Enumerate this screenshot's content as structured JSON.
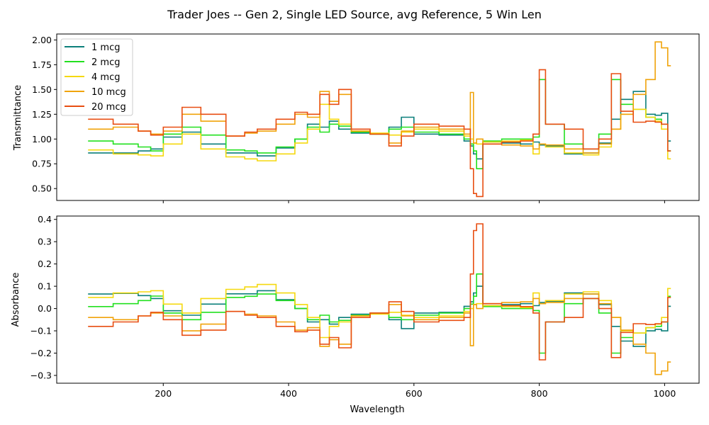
{
  "figure": {
    "suptitle": "Trader Joes -- Gen 2, Single LED Source, avg Reference, 5 Win Len"
  },
  "legend": {
    "placement": "top-left of upper plot",
    "entries": [
      "1 mcg",
      "2 mcg",
      "4 mcg",
      "10 mcg",
      "20 mcg"
    ]
  },
  "colors": {
    "1 mcg": "#0b7f7a",
    "2 mcg": "#22e01f",
    "4 mcg": "#f5d90f",
    "10 mcg": "#f0a30a",
    "20 mcg": "#e84e12"
  },
  "chart_data": [
    {
      "type": "line",
      "style": "step",
      "title": "",
      "xlabel": "",
      "ylabel": "Transmittance",
      "xlim": [
        30,
        1055
      ],
      "ylim": [
        0.38,
        2.06
      ],
      "xticks": [
        200,
        400,
        600,
        800,
        1000
      ],
      "xtick_labels_visible": false,
      "yticks": [
        0.5,
        0.75,
        1.0,
        1.25,
        1.5,
        1.75,
        2.0
      ],
      "ytick_labels": [
        "0.50",
        "0.75",
        "1.00",
        "1.25",
        "1.50",
        "1.75",
        "2.00"
      ],
      "grid": false,
      "legend": true,
      "x": [
        80,
        120,
        160,
        180,
        200,
        230,
        260,
        300,
        330,
        350,
        380,
        410,
        430,
        450,
        465,
        480,
        500,
        530,
        560,
        580,
        600,
        640,
        680,
        690,
        695,
        700,
        710,
        740,
        770,
        790,
        800,
        810,
        840,
        870,
        895,
        915,
        930,
        950,
        970,
        985,
        995,
        1005
      ],
      "series": [
        {
          "name": "1 mcg",
          "values": [
            0.86,
            0.86,
            0.88,
            0.9,
            1.02,
            1.07,
            0.95,
            0.86,
            0.86,
            0.83,
            0.91,
            1.0,
            1.15,
            1.12,
            1.18,
            1.1,
            1.06,
            1.05,
            1.12,
            1.22,
            1.05,
            1.04,
            0.98,
            0.93,
            0.85,
            0.8,
            0.97,
            0.96,
            0.95,
            0.97,
            0.94,
            0.93,
            0.85,
            0.86,
            0.96,
            1.2,
            1.4,
            1.48,
            1.25,
            1.24,
            1.26,
            0.98
          ]
        },
        {
          "name": "2 mcg",
          "values": [
            0.98,
            0.95,
            0.92,
            0.88,
            1.05,
            1.12,
            1.04,
            0.89,
            0.88,
            0.86,
            0.92,
            1.0,
            1.12,
            1.07,
            1.15,
            1.13,
            1.07,
            1.05,
            1.1,
            1.12,
            1.07,
            1.05,
            1.0,
            0.95,
            0.88,
            0.7,
            0.98,
            1.0,
            1.0,
            1.02,
            1.6,
            1.15,
            0.95,
            0.9,
            1.05,
            1.6,
            1.35,
            1.3,
            1.22,
            1.2,
            1.15,
            0.88
          ]
        },
        {
          "name": "4 mcg",
          "values": [
            0.89,
            0.85,
            0.84,
            0.83,
            0.95,
            1.05,
            0.9,
            0.82,
            0.8,
            0.78,
            0.85,
            0.96,
            1.1,
            1.35,
            1.2,
            1.15,
            1.08,
            1.06,
            1.04,
            1.07,
            1.1,
            1.08,
            1.03,
            1.0,
            0.96,
            0.95,
            0.97,
            0.98,
            0.99,
            0.85,
            0.95,
            0.92,
            0.86,
            0.84,
            0.92,
            1.1,
            1.25,
            1.3,
            1.22,
            1.18,
            1.1,
            0.8
          ]
        },
        {
          "name": "10 mcg",
          "values": [
            1.1,
            1.12,
            1.08,
            1.05,
            1.08,
            1.25,
            1.18,
            1.03,
            1.06,
            1.08,
            1.15,
            1.25,
            1.22,
            1.48,
            1.38,
            1.45,
            1.08,
            1.05,
            0.96,
            1.08,
            1.12,
            1.1,
            1.05,
            1.47,
            0.96,
            1.0,
            0.95,
            0.94,
            0.93,
            0.9,
            0.95,
            0.94,
            0.9,
            0.86,
            0.95,
            1.1,
            1.25,
            1.45,
            1.6,
            1.98,
            1.92,
            1.74
          ]
        },
        {
          "name": "20 mcg",
          "values": [
            1.2,
            1.15,
            1.08,
            1.04,
            1.12,
            1.32,
            1.25,
            1.03,
            1.07,
            1.1,
            1.2,
            1.27,
            1.25,
            1.45,
            1.35,
            1.5,
            1.1,
            1.05,
            0.93,
            1.03,
            1.15,
            1.13,
            1.1,
            0.7,
            0.45,
            0.42,
            0.95,
            0.97,
            0.98,
            1.05,
            1.7,
            1.15,
            1.1,
            0.9,
            1.0,
            1.66,
            1.28,
            1.17,
            1.18,
            1.17,
            1.15,
            0.88
          ]
        }
      ]
    },
    {
      "type": "line",
      "style": "step",
      "title": "",
      "xlabel": "Wavelength",
      "ylabel": "Absorbance",
      "xlim": [
        30,
        1055
      ],
      "ylim": [
        -0.335,
        0.415
      ],
      "xticks": [
        200,
        400,
        600,
        800,
        1000
      ],
      "xtick_labels": [
        "200",
        "400",
        "600",
        "800",
        "1000"
      ],
      "yticks": [
        -0.3,
        -0.2,
        -0.1,
        0.0,
        0.1,
        0.2,
        0.3,
        0.4
      ],
      "ytick_labels": [
        "−0.3",
        "−0.2",
        "−0.1",
        "0.0",
        "0.1",
        "0.2",
        "0.3",
        "0.4"
      ],
      "grid": false,
      "legend": false,
      "x": [
        80,
        120,
        160,
        180,
        200,
        230,
        260,
        300,
        330,
        350,
        380,
        410,
        430,
        450,
        465,
        480,
        500,
        530,
        560,
        580,
        600,
        640,
        680,
        690,
        695,
        700,
        710,
        740,
        770,
        790,
        800,
        810,
        840,
        870,
        895,
        915,
        930,
        950,
        970,
        985,
        995,
        1005
      ],
      "series": [
        {
          "name": "1 mcg",
          "values": [
            0.065,
            0.068,
            0.058,
            0.045,
            -0.01,
            -0.03,
            0.02,
            0.066,
            0.066,
            0.08,
            0.04,
            0.0,
            -0.06,
            -0.05,
            -0.07,
            -0.04,
            -0.025,
            -0.02,
            -0.05,
            -0.09,
            -0.02,
            -0.017,
            0.01,
            0.03,
            0.07,
            0.1,
            0.013,
            0.018,
            0.022,
            0.013,
            0.027,
            0.032,
            0.07,
            0.065,
            0.018,
            -0.08,
            -0.146,
            -0.17,
            -0.1,
            -0.093,
            -0.1,
            0.01
          ]
        },
        {
          "name": "2 mcg",
          "values": [
            0.009,
            0.022,
            0.036,
            0.056,
            -0.02,
            -0.05,
            -0.017,
            0.05,
            0.055,
            0.065,
            0.036,
            0.0,
            -0.05,
            -0.03,
            -0.06,
            -0.053,
            -0.03,
            -0.02,
            -0.04,
            -0.05,
            -0.03,
            -0.02,
            0.0,
            0.02,
            0.055,
            0.155,
            0.009,
            0.0,
            0.0,
            -0.009,
            -0.2,
            -0.06,
            0.022,
            0.045,
            -0.02,
            -0.2,
            -0.13,
            -0.11,
            -0.086,
            -0.08,
            -0.06,
            0.055
          ]
        },
        {
          "name": "4 mcg",
          "values": [
            0.05,
            0.07,
            0.075,
            0.08,
            0.02,
            -0.02,
            0.045,
            0.086,
            0.097,
            0.108,
            0.07,
            0.018,
            -0.04,
            -0.13,
            -0.08,
            -0.06,
            -0.033,
            -0.025,
            -0.017,
            -0.03,
            -0.04,
            -0.033,
            -0.013,
            0.0,
            0.018,
            0.022,
            0.013,
            0.009,
            0.004,
            0.07,
            0.022,
            0.036,
            0.065,
            0.075,
            0.036,
            -0.04,
            -0.1,
            -0.11,
            -0.086,
            -0.07,
            -0.04,
            0.09
          ]
        },
        {
          "name": "10 mcg",
          "values": [
            -0.04,
            -0.05,
            -0.033,
            -0.02,
            -0.033,
            -0.1,
            -0.07,
            -0.013,
            -0.025,
            -0.033,
            -0.06,
            -0.097,
            -0.086,
            -0.17,
            -0.14,
            -0.16,
            -0.033,
            -0.02,
            0.018,
            -0.033,
            -0.05,
            -0.04,
            -0.02,
            -0.167,
            0.018,
            0.0,
            0.022,
            0.027,
            0.03,
            0.045,
            0.022,
            0.027,
            0.045,
            0.065,
            0.022,
            -0.04,
            -0.097,
            -0.16,
            -0.2,
            -0.296,
            -0.28,
            -0.24
          ]
        },
        {
          "name": "20 mcg",
          "values": [
            -0.08,
            -0.06,
            -0.033,
            -0.017,
            -0.05,
            -0.12,
            -0.097,
            -0.013,
            -0.03,
            -0.04,
            -0.08,
            -0.104,
            -0.097,
            -0.16,
            -0.13,
            -0.176,
            -0.04,
            -0.02,
            0.03,
            -0.013,
            -0.06,
            -0.053,
            -0.04,
            0.155,
            0.35,
            0.38,
            0.022,
            0.013,
            0.009,
            -0.02,
            -0.23,
            -0.06,
            -0.04,
            0.045,
            0.0,
            -0.22,
            -0.107,
            -0.068,
            -0.072,
            -0.068,
            -0.06,
            0.05
          ]
        }
      ]
    }
  ]
}
